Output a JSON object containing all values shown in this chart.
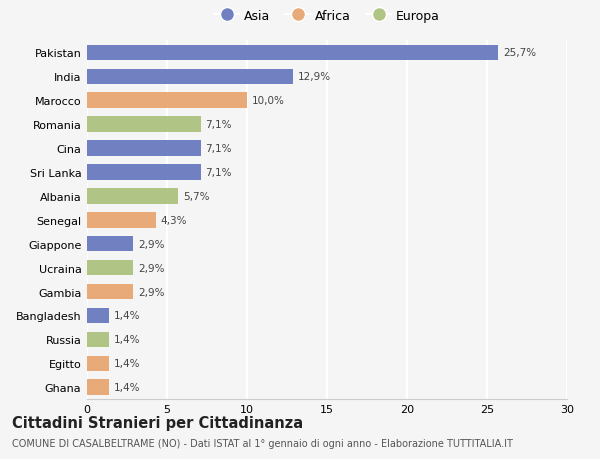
{
  "countries": [
    "Pakistan",
    "India",
    "Marocco",
    "Romania",
    "Cina",
    "Sri Lanka",
    "Albania",
    "Senegal",
    "Giappone",
    "Ucraina",
    "Gambia",
    "Bangladesh",
    "Russia",
    "Egitto",
    "Ghana"
  ],
  "values": [
    25.7,
    12.9,
    10.0,
    7.1,
    7.1,
    7.1,
    5.7,
    4.3,
    2.9,
    2.9,
    2.9,
    1.4,
    1.4,
    1.4,
    1.4
  ],
  "labels": [
    "25,7%",
    "12,9%",
    "10,0%",
    "7,1%",
    "7,1%",
    "7,1%",
    "5,7%",
    "4,3%",
    "2,9%",
    "2,9%",
    "2,9%",
    "1,4%",
    "1,4%",
    "1,4%",
    "1,4%"
  ],
  "continents": [
    "Asia",
    "Asia",
    "Africa",
    "Europa",
    "Asia",
    "Asia",
    "Europa",
    "Africa",
    "Asia",
    "Europa",
    "Africa",
    "Asia",
    "Europa",
    "Africa",
    "Africa"
  ],
  "continent_colors": {
    "Asia": "#7080c0",
    "Africa": "#e8aa78",
    "Europa": "#b0c485"
  },
  "legend_labels": [
    "Asia",
    "Africa",
    "Europa"
  ],
  "title": "Cittadini Stranieri per Cittadinanza",
  "subtitle": "COMUNE DI CASALBELTRAME (NO) - Dati ISTAT al 1° gennaio di ogni anno - Elaborazione TUTTITALIA.IT",
  "xlim": [
    0,
    30
  ],
  "xticks": [
    0,
    5,
    10,
    15,
    20,
    25,
    30
  ],
  "background_color": "#f5f5f5",
  "bar_height": 0.65,
  "grid_color": "#ffffff",
  "title_fontsize": 10.5,
  "subtitle_fontsize": 7.0,
  "label_fontsize": 7.5,
  "tick_fontsize": 8,
  "legend_fontsize": 9
}
